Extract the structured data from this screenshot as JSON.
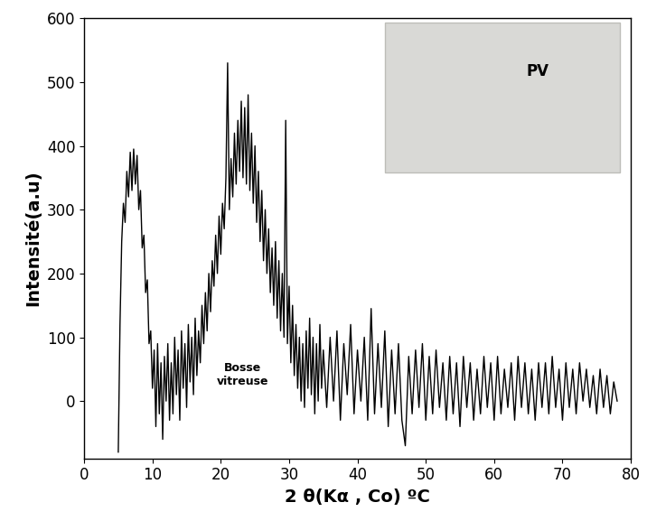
{
  "chart_data": {
    "type": "line",
    "x_label": "2 θ(Kα , Co) ºC",
    "y_label": "Intensité(a.u)",
    "color": "#000000",
    "xlim": [
      0,
      80
    ],
    "xticks": [
      0,
      10,
      20,
      30,
      40,
      50,
      60,
      70,
      80
    ],
    "ylim": [
      -90,
      600
    ],
    "yticks": [
      0,
      100,
      200,
      300,
      400,
      500,
      600
    ],
    "annotations": [
      "Bosse\nvitreuse",
      "PV"
    ],
    "x": [
      5.0,
      5.25,
      5.5,
      5.75,
      6.0,
      6.25,
      6.5,
      6.75,
      7.0,
      7.25,
      7.5,
      7.75,
      8.0,
      8.25,
      8.5,
      8.75,
      9.0,
      9.25,
      9.5,
      9.75,
      10.0,
      10.25,
      10.5,
      10.75,
      11.0,
      11.25,
      11.5,
      11.75,
      12.0,
      12.25,
      12.5,
      12.75,
      13.0,
      13.25,
      13.5,
      13.75,
      14.0,
      14.25,
      14.5,
      14.75,
      15.0,
      15.25,
      15.5,
      15.75,
      16.0,
      16.25,
      16.5,
      16.75,
      17.0,
      17.25,
      17.5,
      17.75,
      18.0,
      18.25,
      18.5,
      18.75,
      19.0,
      19.25,
      19.5,
      19.75,
      20.0,
      20.25,
      20.5,
      20.75,
      21.0,
      21.25,
      21.5,
      21.75,
      22.0,
      22.25,
      22.5,
      22.75,
      23.0,
      23.25,
      23.5,
      23.75,
      24.0,
      24.25,
      24.5,
      24.75,
      25.0,
      25.25,
      25.5,
      25.75,
      26.0,
      26.25,
      26.5,
      26.75,
      27.0,
      27.25,
      27.5,
      27.75,
      28.0,
      28.25,
      28.5,
      28.75,
      29.0,
      29.25,
      29.5,
      29.75,
      30.0,
      30.25,
      30.5,
      30.75,
      31.0,
      31.25,
      31.5,
      31.75,
      32.0,
      32.25,
      32.5,
      32.75,
      33.0,
      33.25,
      33.5,
      33.75,
      34.0,
      34.25,
      34.5,
      34.75,
      35.0,
      35.5,
      36.0,
      36.5,
      37.0,
      37.5,
      38.0,
      38.5,
      39.0,
      39.5,
      40.0,
      40.5,
      41.0,
      41.5,
      42.0,
      42.5,
      43.0,
      43.5,
      44.0,
      44.5,
      45.0,
      45.5,
      46.0,
      46.5,
      47.0,
      47.5,
      48.0,
      48.5,
      49.0,
      49.5,
      50.0,
      50.5,
      51.0,
      51.5,
      52.0,
      52.5,
      53.0,
      53.5,
      54.0,
      54.5,
      55.0,
      55.5,
      56.0,
      56.5,
      57.0,
      57.5,
      58.0,
      58.5,
      59.0,
      59.5,
      60.0,
      60.5,
      61.0,
      61.5,
      62.0,
      62.5,
      63.0,
      63.5,
      64.0,
      64.5,
      65.0,
      65.5,
      66.0,
      66.5,
      67.0,
      67.5,
      68.0,
      68.5,
      69.0,
      69.5,
      70.0,
      70.5,
      71.0,
      71.5,
      72.0,
      72.5,
      73.0,
      73.5,
      74.0,
      74.5,
      75.0,
      75.5,
      76.0,
      76.5,
      77.0,
      77.5,
      78.0
    ],
    "values": [
      -80,
      120,
      250,
      310,
      280,
      360,
      320,
      390,
      330,
      395,
      340,
      385,
      300,
      330,
      240,
      260,
      170,
      190,
      90,
      110,
      20,
      80,
      -40,
      90,
      -20,
      60,
      -60,
      70,
      0,
      90,
      -30,
      60,
      -20,
      100,
      10,
      80,
      -30,
      110,
      20,
      90,
      -10,
      120,
      30,
      100,
      10,
      130,
      40,
      110,
      60,
      150,
      90,
      170,
      110,
      200,
      140,
      220,
      180,
      260,
      200,
      290,
      230,
      310,
      270,
      350,
      530,
      300,
      380,
      320,
      420,
      340,
      440,
      360,
      470,
      350,
      460,
      340,
      480,
      330,
      420,
      310,
      400,
      280,
      360,
      250,
      330,
      220,
      300,
      200,
      270,
      170,
      240,
      150,
      250,
      130,
      220,
      110,
      200,
      100,
      440,
      90,
      180,
      60,
      150,
      40,
      120,
      20,
      100,
      0,
      90,
      -10,
      110,
      20,
      130,
      10,
      100,
      -20,
      90,
      0,
      120,
      20,
      80,
      -10,
      100,
      0,
      110,
      -30,
      90,
      10,
      120,
      -20,
      80,
      0,
      100,
      -30,
      145,
      -20,
      90,
      -10,
      110,
      -40,
      80,
      -20,
      90,
      -30,
      -70,
      70,
      -20,
      80,
      -10,
      90,
      -30,
      70,
      -20,
      80,
      -10,
      60,
      -30,
      70,
      -20,
      60,
      -40,
      70,
      -10,
      60,
      -30,
      50,
      -20,
      70,
      -10,
      60,
      -30,
      70,
      -20,
      50,
      -10,
      60,
      -30,
      70,
      -10,
      60,
      -20,
      50,
      -30,
      60,
      -10,
      60,
      -20,
      70,
      -10,
      50,
      -30,
      60,
      -10,
      50,
      -20,
      60,
      0,
      50,
      -10,
      40,
      -20,
      50,
      -10,
      40,
      -20,
      30,
      0
    ]
  }
}
